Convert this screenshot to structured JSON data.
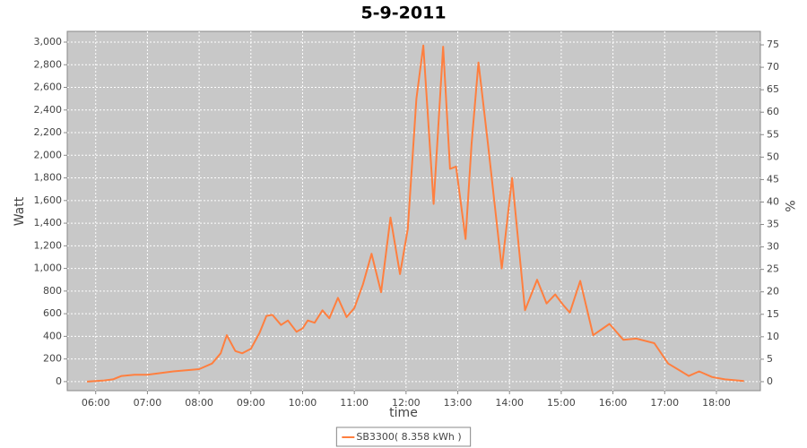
{
  "chart_data": {
    "type": "line",
    "title": "5-9-2011",
    "x_label": "time",
    "y_label": "Watt",
    "y2_label": "%",
    "x": [
      "05:50",
      "06:10",
      "06:20",
      "06:30",
      "06:45",
      "07:00",
      "07:15",
      "07:30",
      "07:45",
      "08:00",
      "08:15",
      "08:25",
      "08:32",
      "08:42",
      "08:50",
      "09:00",
      "09:10",
      "09:18",
      "09:25",
      "09:35",
      "09:43",
      "09:53",
      "10:00",
      "10:06",
      "10:14",
      "10:23",
      "10:31",
      "10:41",
      "10:51",
      "11:00",
      "11:10",
      "11:20",
      "11:31",
      "11:42",
      "11:53",
      "12:02",
      "12:12",
      "12:20",
      "12:32",
      "12:43",
      "12:51",
      "12:58",
      "13:09",
      "13:16",
      "13:24",
      "13:35",
      "13:51",
      "14:03",
      "14:18",
      "14:32",
      "14:43",
      "14:53",
      "15:02",
      "15:10",
      "15:22",
      "15:37",
      "15:56",
      "16:12",
      "16:27",
      "16:48",
      "17:04",
      "17:28",
      "17:40",
      "17:55",
      "18:10",
      "18:32"
    ],
    "series": [
      {
        "name": "SB3300( 8.358 kWh )",
        "color": "#ff7f3f",
        "values": [
          0,
          10,
          20,
          50,
          60,
          60,
          75,
          90,
          100,
          110,
          160,
          250,
          410,
          270,
          250,
          290,
          430,
          580,
          590,
          500,
          540,
          440,
          470,
          540,
          520,
          630,
          560,
          740,
          570,
          650,
          860,
          1130,
          790,
          1450,
          950,
          1350,
          2500,
          2970,
          1570,
          2960,
          1880,
          1900,
          1260,
          2100,
          2820,
          2100,
          1000,
          1800,
          630,
          900,
          690,
          770,
          680,
          610,
          890,
          410,
          510,
          370,
          380,
          340,
          160,
          50,
          90,
          40,
          20,
          5
        ]
      }
    ],
    "xlim": [
      "05:27",
      "18:51"
    ],
    "xticks": [
      "06:00",
      "07:00",
      "08:00",
      "09:00",
      "10:00",
      "11:00",
      "12:00",
      "13:00",
      "14:00",
      "15:00",
      "16:00",
      "17:00",
      "18:00"
    ],
    "ylim": [
      -80,
      3095
    ],
    "yticks": [
      0,
      200,
      400,
      600,
      800,
      {
        "value": 1000,
        "label": "1,000"
      },
      {
        "value": 1200,
        "label": "1,200"
      },
      {
        "value": 1400,
        "label": "1,400"
      },
      {
        "value": 1600,
        "label": "1,600"
      },
      {
        "value": 1800,
        "label": "1,800"
      },
      {
        "value": 2000,
        "label": "2,000"
      },
      {
        "value": 2200,
        "label": "2,200"
      },
      {
        "value": 2400,
        "label": "2,400"
      },
      {
        "value": 2600,
        "label": "2,600"
      },
      {
        "value": 2800,
        "label": "2,800"
      },
      {
        "value": 3000,
        "label": "3,000"
      }
    ],
    "y2lim": [
      -2,
      78
    ],
    "y2ticks": [
      0,
      5,
      10,
      15,
      20,
      25,
      30,
      35,
      40,
      45,
      50,
      55,
      60,
      65,
      70,
      75
    ],
    "grid": true,
    "legend": "bottom",
    "plot_background": "#c8c8c8"
  }
}
